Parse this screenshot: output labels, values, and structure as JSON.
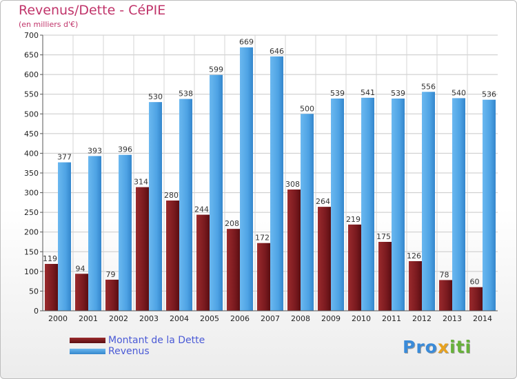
{
  "brand": {
    "logo_text": "Proxiti",
    "letter_colors": [
      "#3a8bd9",
      "#3a8bd9",
      "#3a8bd9",
      "#e8a21f",
      "#67b23a",
      "#67b23a",
      "#67b23a"
    ]
  },
  "chart_data": {
    "type": "bar",
    "title": "Revenus/Dette - CéPIE",
    "subtitle": "(en milliers d'€)",
    "xlabel": "",
    "ylabel": "",
    "ylim": [
      0,
      700
    ],
    "yticks": [
      0,
      50,
      100,
      150,
      200,
      250,
      300,
      350,
      400,
      450,
      500,
      550,
      600,
      650,
      700
    ],
    "grid": true,
    "legend_position": "bottom-left",
    "categories": [
      "2000",
      "2001",
      "2002",
      "2003",
      "2004",
      "2005",
      "2006",
      "2007",
      "2008",
      "2009",
      "2010",
      "2011",
      "2012",
      "2013",
      "2014"
    ],
    "series": [
      {
        "name": "Montant de la Dette",
        "color": "#7a1a1f",
        "values": [
          119,
          94,
          79,
          314,
          280,
          244,
          208,
          172,
          308,
          264,
          219,
          175,
          126,
          78,
          60
        ]
      },
      {
        "name": "Revenus",
        "color": "#4ea3e4",
        "values": [
          377,
          393,
          396,
          530,
          538,
          599,
          669,
          646,
          500,
          539,
          541,
          539,
          556,
          540,
          536
        ]
      }
    ]
  }
}
